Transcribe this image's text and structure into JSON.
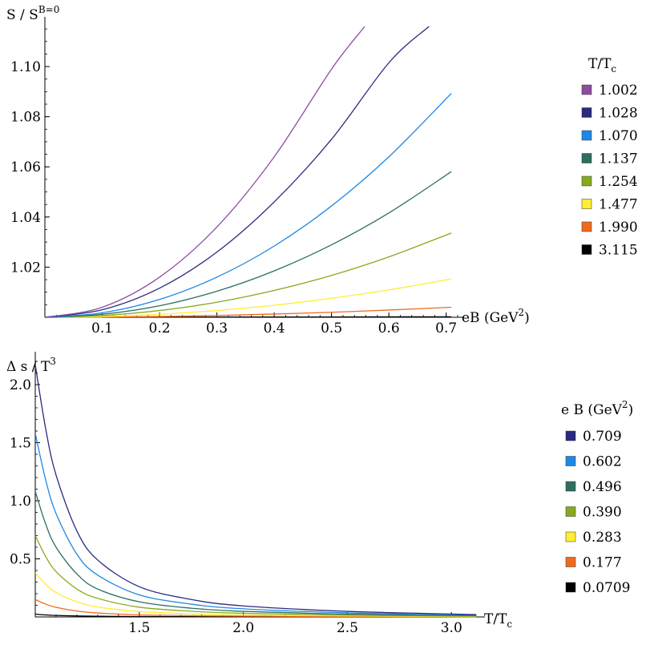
{
  "chart_data": [
    {
      "type": "line",
      "ylabel_base": "S / S",
      "ylabel_sup": "B=0",
      "xlabel_base": "eB (GeV",
      "xlabel_sup": "2",
      "xlabel_end": ")",
      "xlim": [
        0,
        0.72
      ],
      "ylim": [
        1.0,
        1.116
      ],
      "xticks": [
        0.1,
        0.2,
        0.3,
        0.4,
        0.5,
        0.6,
        0.7
      ],
      "xtick_labels": [
        "0.1",
        "0.2",
        "0.3",
        "0.4",
        "0.5",
        "0.6",
        "0.7"
      ],
      "yticks": [
        1.02,
        1.04,
        1.06,
        1.08,
        1.1
      ],
      "ytick_labels": [
        "1.02",
        "1.04",
        "1.06",
        "1.08",
        "1.10"
      ],
      "legend_title_base": "T/T",
      "legend_title_sub": "c",
      "legend_position": "right",
      "series": [
        {
          "name": "1.002",
          "color": "#8a4fa0",
          "x": [
            0,
            0.1,
            0.2,
            0.3,
            0.4,
            0.5,
            0.558
          ],
          "y": [
            1.0,
            1.004,
            1.016,
            1.036,
            1.064,
            1.099,
            1.116
          ]
        },
        {
          "name": "1.028",
          "color": "#2a2a80",
          "x": [
            0,
            0.1,
            0.2,
            0.3,
            0.4,
            0.5,
            0.6,
            0.67
          ],
          "y": [
            1.0,
            1.003,
            1.0116,
            1.026,
            1.046,
            1.071,
            1.1015,
            1.116
          ]
        },
        {
          "name": "1.070",
          "color": "#1e88e5",
          "x": [
            0,
            0.1,
            0.2,
            0.3,
            0.4,
            0.5,
            0.6,
            0.709
          ],
          "y": [
            1.0,
            1.0018,
            1.0071,
            1.016,
            1.0284,
            1.0444,
            1.064,
            1.0893
          ]
        },
        {
          "name": "1.137",
          "color": "#2e6e60",
          "x": [
            0,
            0.1,
            0.2,
            0.3,
            0.4,
            0.5,
            0.6,
            0.709
          ],
          "y": [
            1.0,
            1.0012,
            1.0046,
            1.0104,
            1.0185,
            1.0289,
            1.0416,
            1.0581
          ]
        },
        {
          "name": "1.254",
          "color": "#86aa1c",
          "x": [
            0,
            0.1,
            0.2,
            0.3,
            0.4,
            0.5,
            0.6,
            0.709
          ],
          "y": [
            1.0,
            1.0007,
            1.0027,
            1.006,
            1.0107,
            1.0167,
            1.0241,
            1.0336
          ]
        },
        {
          "name": "1.477",
          "color": "#ffee33",
          "x": [
            0,
            0.1,
            0.2,
            0.3,
            0.4,
            0.5,
            0.6,
            0.709
          ],
          "y": [
            1.0,
            1.0003,
            1.0012,
            1.0027,
            1.0048,
            1.0076,
            1.0109,
            1.0153
          ]
        },
        {
          "name": "1.990",
          "color": "#f06a1e",
          "x": [
            0,
            0.1,
            0.2,
            0.3,
            0.4,
            0.5,
            0.6,
            0.709
          ],
          "y": [
            1.0,
            1.0001,
            1.0003,
            1.0007,
            1.0013,
            1.002,
            1.0029,
            1.004
          ]
        },
        {
          "name": "3.115",
          "color": "#000000",
          "x": [
            0,
            0.709
          ],
          "y": [
            1.0,
            1.0002
          ]
        }
      ]
    },
    {
      "type": "line",
      "ylabel_base": "Δ s / T",
      "ylabel_sup": "3",
      "xlabel_base": "T/T",
      "xlabel_sub": "c",
      "xlim": [
        1.0,
        3.13
      ],
      "ylim": [
        0,
        2.2
      ],
      "xticks": [
        1.5,
        2.0,
        2.5,
        3.0
      ],
      "xtick_labels": [
        "1.5",
        "2.0",
        "2.5",
        "3.0"
      ],
      "yticks": [
        0.5,
        1.0,
        1.5,
        2.0
      ],
      "ytick_labels": [
        "0.5",
        "1.0",
        "1.5",
        "2.0"
      ],
      "legend_title_base": "e B (GeV",
      "legend_title_sup": "2",
      "legend_title_end": ")",
      "legend_position": "right",
      "series": [
        {
          "name": "0.709",
          "color": "#2a2a80",
          "x": [
            1.0,
            1.05,
            1.1,
            1.2,
            1.3,
            1.5,
            1.75,
            2.0,
            2.5,
            3.0,
            3.12
          ],
          "y": [
            2.17,
            1.62,
            1.22,
            0.74,
            0.49,
            0.26,
            0.15,
            0.095,
            0.048,
            0.025,
            0.02
          ]
        },
        {
          "name": "0.602",
          "color": "#1e88e5",
          "x": [
            1.0,
            1.05,
            1.1,
            1.2,
            1.3,
            1.5,
            1.75,
            2.0,
            2.5,
            3.0,
            3.12
          ],
          "y": [
            1.58,
            1.18,
            0.89,
            0.54,
            0.36,
            0.19,
            0.11,
            0.07,
            0.035,
            0.018,
            0.015
          ]
        },
        {
          "name": "0.496",
          "color": "#2e6e60",
          "x": [
            1.0,
            1.05,
            1.1,
            1.2,
            1.3,
            1.5,
            1.75,
            2.0,
            2.5,
            3.0,
            3.12
          ],
          "y": [
            1.08,
            0.8,
            0.6,
            0.37,
            0.24,
            0.13,
            0.075,
            0.048,
            0.024,
            0.012,
            0.01
          ]
        },
        {
          "name": "0.390",
          "color": "#86aa1c",
          "x": [
            1.0,
            1.05,
            1.1,
            1.2,
            1.3,
            1.5,
            1.75,
            2.0,
            2.5,
            3.0,
            3.12
          ],
          "y": [
            0.7,
            0.52,
            0.39,
            0.24,
            0.16,
            0.084,
            0.049,
            0.031,
            0.016,
            0.008,
            0.007
          ]
        },
        {
          "name": "0.283",
          "color": "#ffee33",
          "x": [
            1.0,
            1.05,
            1.1,
            1.2,
            1.3,
            1.5,
            1.75,
            2.0,
            2.5,
            3.0,
            3.12
          ],
          "y": [
            0.38,
            0.28,
            0.21,
            0.13,
            0.086,
            0.046,
            0.027,
            0.017,
            0.009,
            0.004,
            0.004
          ]
        },
        {
          "name": "0.177",
          "color": "#f06a1e",
          "x": [
            1.0,
            1.05,
            1.1,
            1.2,
            1.3,
            1.5,
            1.75,
            2.0,
            2.5,
            3.0,
            3.12
          ],
          "y": [
            0.15,
            0.11,
            0.083,
            0.051,
            0.034,
            0.018,
            0.011,
            0.007,
            0.003,
            0.002,
            0.001
          ]
        },
        {
          "name": "0.0709",
          "color": "#000000",
          "x": [
            1.0,
            1.1,
            1.3,
            1.5,
            2.0,
            3.12
          ],
          "y": [
            0.024,
            0.013,
            0.006,
            0.003,
            0.001,
            0.0002
          ]
        }
      ]
    }
  ]
}
